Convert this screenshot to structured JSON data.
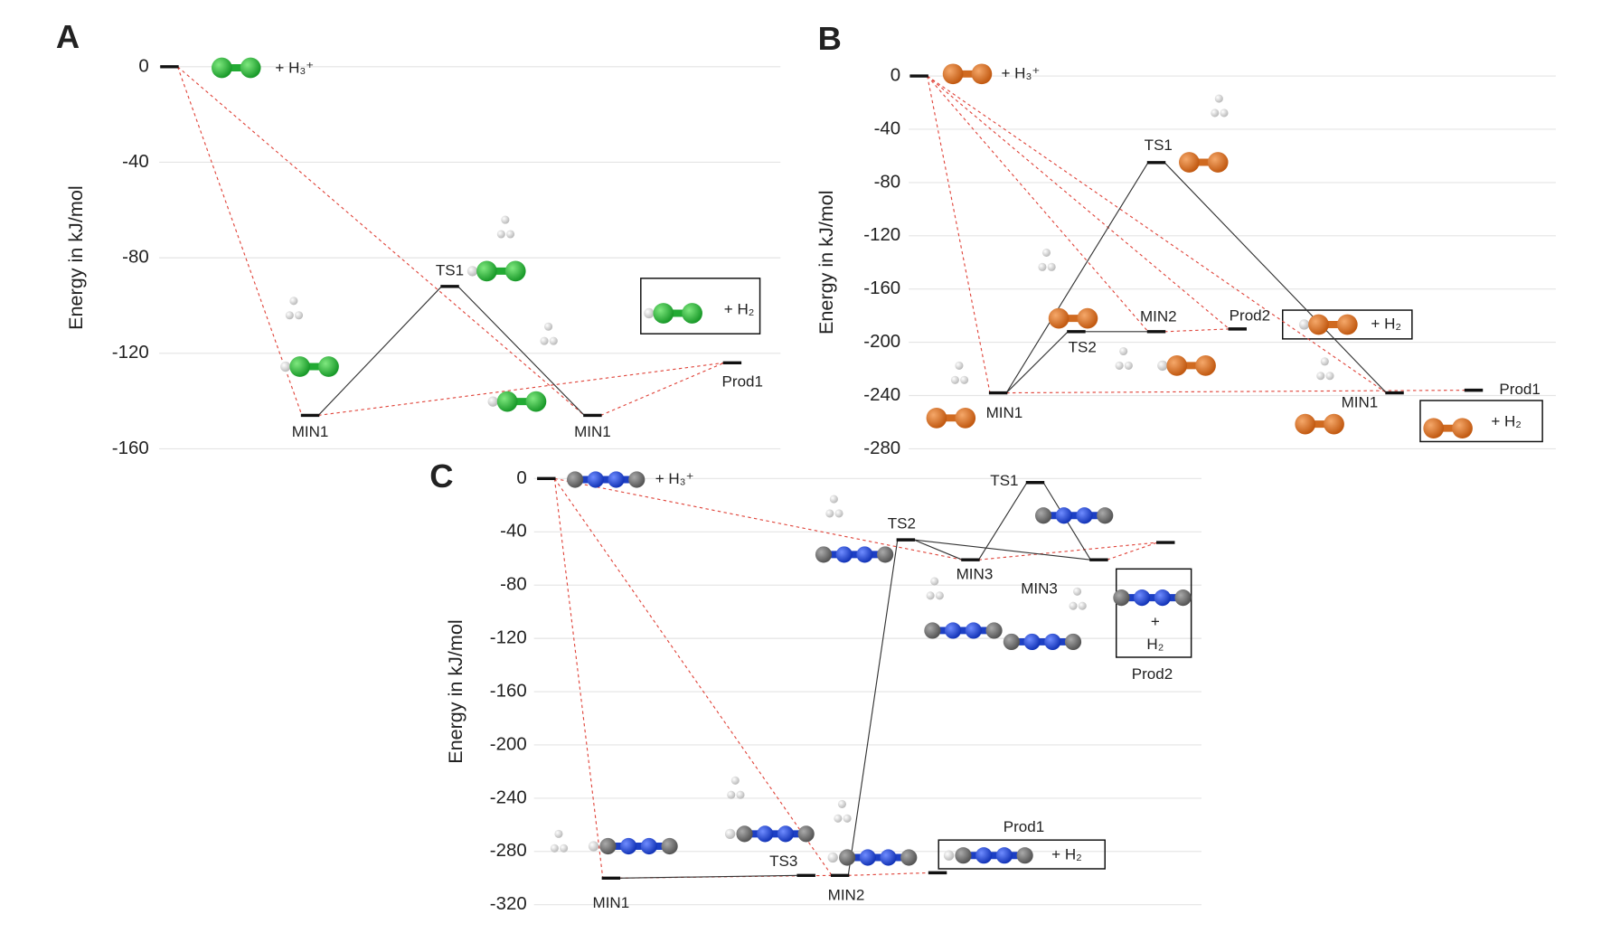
{
  "chart_data": [
    {
      "type": "energy",
      "panel_label": "A",
      "y_label": "Energy in kJ/mol",
      "ylim": [
        -160,
        0
      ],
      "yticks": [
        0,
        -40,
        -80,
        -120,
        -160
      ],
      "levels": [
        {
          "label": null,
          "value": 0
        },
        {
          "label": "MIN1",
          "value": -146
        },
        {
          "label": "TS1",
          "value": -92
        },
        {
          "label": "MIN1",
          "value": -146
        },
        {
          "label": "Prod1",
          "value": -124
        }
      ],
      "annotations": [
        "+ H₃⁺",
        "+ H₂"
      ]
    },
    {
      "type": "energy",
      "panel_label": "B",
      "y_label": "Energy in kJ/mol",
      "ylim": [
        -280,
        0
      ],
      "yticks": [
        0,
        -40,
        -80,
        -120,
        -160,
        -200,
        -240,
        -280
      ],
      "levels": [
        {
          "label": null,
          "value": 0
        },
        {
          "label": "MIN1",
          "value": -238
        },
        {
          "label": "TS2",
          "value": -192
        },
        {
          "label": "MIN2",
          "value": -192
        },
        {
          "label": "TS1",
          "value": -65
        },
        {
          "label": "Prod2",
          "value": -190
        },
        {
          "label": "MIN1",
          "value": -238
        },
        {
          "label": "Prod1",
          "value": -236
        }
      ],
      "annotations": [
        "+ H₃⁺",
        "+ H₂",
        "+ H₂"
      ]
    },
    {
      "type": "energy",
      "panel_label": "C",
      "y_label": "Energy in kJ/mol",
      "ylim": [
        -320,
        0
      ],
      "yticks": [
        0,
        -40,
        -80,
        -120,
        -160,
        -200,
        -240,
        -280,
        -320
      ],
      "levels": [
        {
          "label": null,
          "value": 0
        },
        {
          "label": "MIN1",
          "value": -300
        },
        {
          "label": "TS3",
          "value": -298
        },
        {
          "label": "MIN2",
          "value": -298
        },
        {
          "label": "Prod1",
          "value": -296
        },
        {
          "label": "TS2",
          "value": -46
        },
        {
          "label": "MIN3",
          "value": -61
        },
        {
          "label": "TS1",
          "value": -3
        },
        {
          "label": "MIN3",
          "value": -61
        },
        {
          "label": "Prod2",
          "value": -48
        }
      ],
      "annotations": [
        "+ H₃⁺",
        "+ H₂",
        "+",
        "H₂"
      ]
    }
  ]
}
